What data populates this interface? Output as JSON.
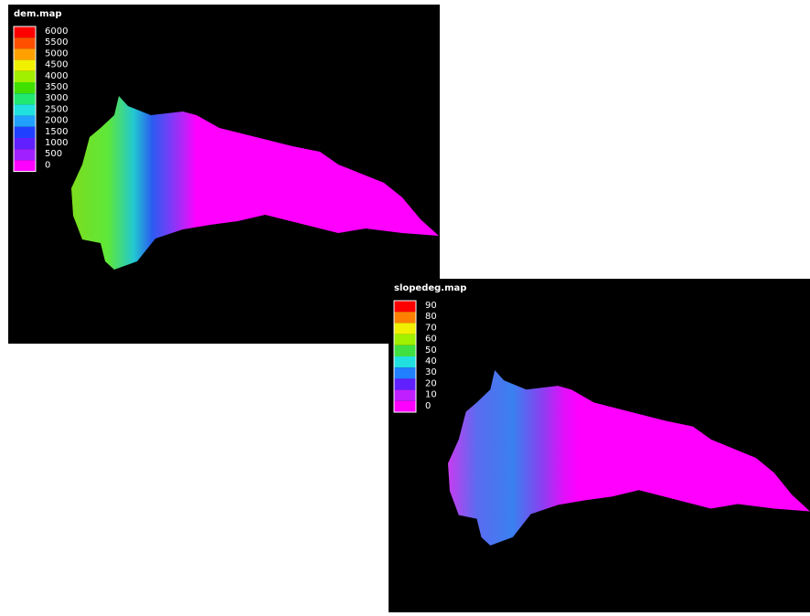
{
  "maps": [
    {
      "title": "dem.map",
      "legend": [
        "6000",
        "5500",
        "5000",
        "4500",
        "4000",
        "3500",
        "3000",
        "2500",
        "2000",
        "1500",
        "1000",
        "500",
        "0"
      ]
    },
    {
      "title": "slopedeg.map",
      "legend": [
        "90",
        "80",
        "70",
        "60",
        "50",
        "40",
        "30",
        "20",
        "10",
        "0"
      ]
    }
  ]
}
